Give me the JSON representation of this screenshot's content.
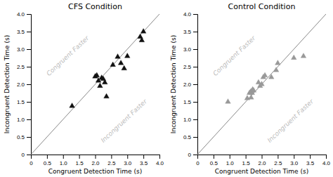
{
  "chart_data": [
    {
      "type": "scatter",
      "title": "CFS Condition",
      "xlabel": "Congruent Detection Time (s)",
      "ylabel": "Incongruent Detection Time (s)",
      "series": [
        {
          "type": "line",
          "color": "#888888",
          "x": [
            0,
            4
          ],
          "values": [
            0,
            4
          ]
        },
        {
          "type": "scatter",
          "marker": "triangle",
          "color": "#111111",
          "x": [
            1.28,
            2.0,
            2.05,
            2.1,
            2.15,
            2.2,
            2.25,
            2.3,
            2.35,
            2.55,
            2.7,
            2.8,
            2.9,
            3.0,
            3.4,
            3.45,
            3.5
          ],
          "values": [
            1.38,
            2.22,
            2.25,
            2.1,
            1.95,
            2.18,
            2.15,
            2.05,
            1.65,
            2.55,
            2.78,
            2.6,
            2.45,
            2.8,
            3.35,
            3.25,
            3.5
          ]
        }
      ],
      "xlim": [
        0,
        4.0
      ],
      "ylim": [
        0,
        4.0
      ],
      "xticks": [
        0,
        0.5,
        {
          "value": 1.0,
          "label": "1.0"
        },
        1.5,
        {
          "value": 2.0,
          "label": "2.0"
        },
        2.5,
        {
          "value": 3.0,
          "label": "3.0"
        },
        3.5,
        {
          "value": 4.0,
          "label": "4.0"
        }
      ],
      "yticks": [
        0,
        0.5,
        {
          "value": 1.0,
          "label": "1.0"
        },
        1.5,
        {
          "value": 2.0,
          "label": "2.0"
        },
        2.5,
        {
          "value": 3.0,
          "label": "3.0"
        },
        3.5,
        {
          "value": 4.0,
          "label": "4.0"
        }
      ],
      "grid": false,
      "annotations": [
        {
          "text": "Congruent Faster",
          "x": 1.15,
          "y": 2.8,
          "color": "#bbbbbb"
        },
        {
          "text": "Incongruent Faster",
          "x": 2.9,
          "y": 0.95,
          "color": "#bbbbbb"
        }
      ]
    },
    {
      "type": "scatter",
      "title": "Control Condition",
      "xlabel": "Congruent Detection Time (s)",
      "ylabel": "Incongruent Detection Time (s)",
      "series": [
        {
          "type": "line",
          "color": "#888888",
          "x": [
            0,
            4
          ],
          "values": [
            0,
            4
          ]
        },
        {
          "type": "scatter",
          "marker": "triangle",
          "color": "#999999",
          "x": [
            0.95,
            1.55,
            1.62,
            1.65,
            1.67,
            1.68,
            1.7,
            1.72,
            1.75,
            1.9,
            1.95,
            2.0,
            2.05,
            2.1,
            2.3,
            2.45,
            2.5,
            3.0,
            3.3
          ],
          "values": [
            1.5,
            1.6,
            1.75,
            1.78,
            1.62,
            1.8,
            1.75,
            1.85,
            1.82,
            2.05,
            1.95,
            2.0,
            2.2,
            2.25,
            2.2,
            2.4,
            2.6,
            2.75,
            2.8
          ]
        }
      ],
      "xlim": [
        0,
        4.0
      ],
      "ylim": [
        0,
        4.0
      ],
      "xticks": [
        0,
        0.5,
        {
          "value": 1.0,
          "label": "1.0"
        },
        1.5,
        {
          "value": 2.0,
          "label": "2.0"
        },
        2.5,
        {
          "value": 3.0,
          "label": "3.0"
        },
        3.5,
        {
          "value": 4.0,
          "label": "4.0"
        }
      ],
      "yticks": [
        0,
        0.5,
        {
          "value": 1.0,
          "label": "1.0"
        },
        1.5,
        {
          "value": 2.0,
          "label": "2.0"
        },
        2.5,
        {
          "value": 3.0,
          "label": "3.0"
        },
        3.5,
        {
          "value": 4.0,
          "label": "4.0"
        }
      ],
      "grid": false,
      "annotations": [
        {
          "text": "Congruent Faster",
          "x": 1.15,
          "y": 2.8,
          "color": "#bbbbbb"
        },
        {
          "text": "Incongruent Faster",
          "x": 2.9,
          "y": 0.95,
          "color": "#bbbbbb"
        }
      ]
    }
  ]
}
